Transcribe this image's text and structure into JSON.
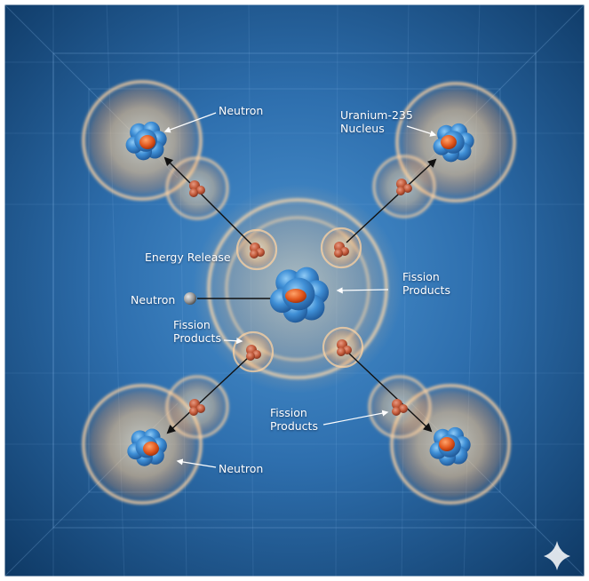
{
  "labels": {
    "neutron_top_left": "Neutron",
    "uranium_line1": "Uranium-235",
    "uranium_line2": "Nucleus",
    "energy_release": "Energy Release",
    "neutron_incoming": "Neutron",
    "fission_products_right_line1": "Fission",
    "fission_products_right_line2": "Products",
    "fission_products_left_line1": "Fission",
    "fission_products_left_line2": "Products",
    "fission_products_bottom_line1": "Fission",
    "fission_products_bottom_line2": "Products",
    "neutron_bottom_left": "Neutron"
  },
  "icons": {
    "watermark": "sparkle-icon"
  },
  "colors": {
    "background_center": "#3f86c7",
    "background_edge": "#123f6f",
    "glow": "#ffb070",
    "nucleus_blue": "#3f8fd6",
    "nucleus_core": "#e0561c",
    "fragment": "#c25a3a"
  }
}
